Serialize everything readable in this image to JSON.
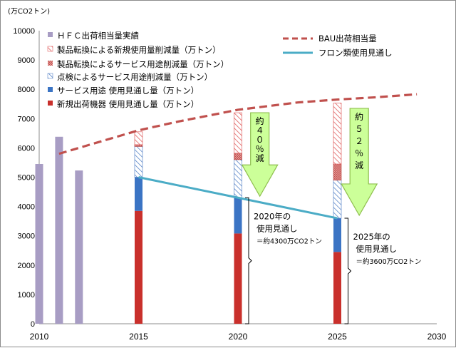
{
  "chart_data": {
    "type": "bar",
    "unit_label": "(万CO2トン)",
    "x_axis": {
      "min": 2010,
      "max": 2030,
      "ticks": [
        2010,
        2015,
        2020,
        2025,
        2030
      ]
    },
    "y_axis": {
      "min": 0,
      "max": 10000,
      "step": 1000,
      "tick_labels": [
        "0",
        "1000",
        "2000",
        "3000",
        "4000",
        "5000",
        "6000",
        "7000",
        "8000",
        "9000",
        "10000"
      ]
    },
    "grid": false,
    "legend_placement": "top",
    "legend": {
      "hfc": "ＨＦＣ出荷相当量実績",
      "reduction_new_conversion": "製品転換による新規使用量削減量（万トン）",
      "reduction_service_conversion": "製品転換によるサービス用途削減量（万トン）",
      "reduction_inspection": "点検によるサービス用途削減量（万トン）",
      "service_use": "サービス用途 使用見通し量（万トン）",
      "new_equipment": "新規出荷機器 使用見通し量（万トン）",
      "bau": "BAU出荷相当量",
      "fluorocarbon": "フロン類使用見通し"
    },
    "colors": {
      "hfc": "#a89dc4",
      "new_equipment": "#c9302c",
      "service_use": "#3b74c4",
      "inspection": "#5a86c8",
      "service_conversion": "#c0504d",
      "new_conversion": "#e06060",
      "bau": "#c0504d",
      "fluorocarbon": "#4bacc6",
      "arrow_fill": "#ccff99",
      "arrow_stroke": "#8fbf4f"
    },
    "series": [
      {
        "name": "ＨＦＣ出荷相当量実績",
        "key": "hfc",
        "x": [
          2010,
          2011,
          2012
        ],
        "values": [
          5450,
          6380,
          5230
        ]
      },
      {
        "name": "新規出荷機器 使用見通し量（万トン）",
        "key": "new_equipment",
        "x": [
          2015,
          2020,
          2025
        ],
        "values": [
          3850,
          3080,
          2450
        ]
      },
      {
        "name": "サービス用途 使用見通し量（万トン）",
        "key": "service_use",
        "x": [
          2015,
          2020,
          2025
        ],
        "values": [
          1150,
          1220,
          1150
        ]
      },
      {
        "name": "点検によるサービス用途削減量（万トン）",
        "key": "inspection",
        "x": [
          2015,
          2020,
          2025
        ],
        "values": [
          1050,
          1300,
          1300
        ]
      },
      {
        "name": "製品転換によるサービス用途削減量（万トン）",
        "key": "service_conversion",
        "x": [
          2015,
          2020,
          2025
        ],
        "values": [
          60,
          220,
          550
        ]
      },
      {
        "name": "製品転換による新規使用量削減量（万トン）",
        "key": "new_conversion",
        "x": [
          2015,
          2020,
          2025
        ],
        "values": [
          440,
          1380,
          2080
        ]
      }
    ],
    "lines": [
      {
        "name": "BAU出荷相当量",
        "key": "bau",
        "points": [
          [
            2011,
            5800
          ],
          [
            2013,
            6200
          ],
          [
            2015,
            6600
          ],
          [
            2017,
            6900
          ],
          [
            2020,
            7300
          ],
          [
            2023,
            7550
          ],
          [
            2025,
            7650
          ],
          [
            2027,
            7730
          ],
          [
            2029,
            7830
          ]
        ]
      },
      {
        "name": "フロン類使用見通し",
        "key": "fluorocarbon",
        "points": [
          [
            2015,
            5000
          ],
          [
            2020,
            4300
          ],
          [
            2025,
            3600
          ]
        ]
      }
    ],
    "annotations": {
      "arrow_2020_text": [
        "約",
        "４",
        "０",
        "％",
        "減"
      ],
      "arrow_2025_text": [
        "約",
        "５",
        "２",
        "％",
        "減"
      ],
      "note_2020": [
        "2020年の",
        "使用見通し",
        "＝約4300万CO2トン"
      ],
      "note_2025": [
        "2025年の",
        "使用見通し",
        "＝約3600万CO2トン"
      ]
    },
    "arrows": [
      {
        "x": 2021.1,
        "top": 7200,
        "bottom": 4350,
        "text_key": "arrow_2020_text"
      },
      {
        "x": 2026.1,
        "top": 7350,
        "bottom": 3700,
        "text_key": "arrow_2025_text"
      }
    ],
    "braces": [
      {
        "x": 2020,
        "top": 4300,
        "bottom": 0,
        "note_key": "note_2020"
      },
      {
        "x": 2025,
        "top": 3600,
        "bottom": 0,
        "note_key": "note_2025"
      }
    ]
  }
}
